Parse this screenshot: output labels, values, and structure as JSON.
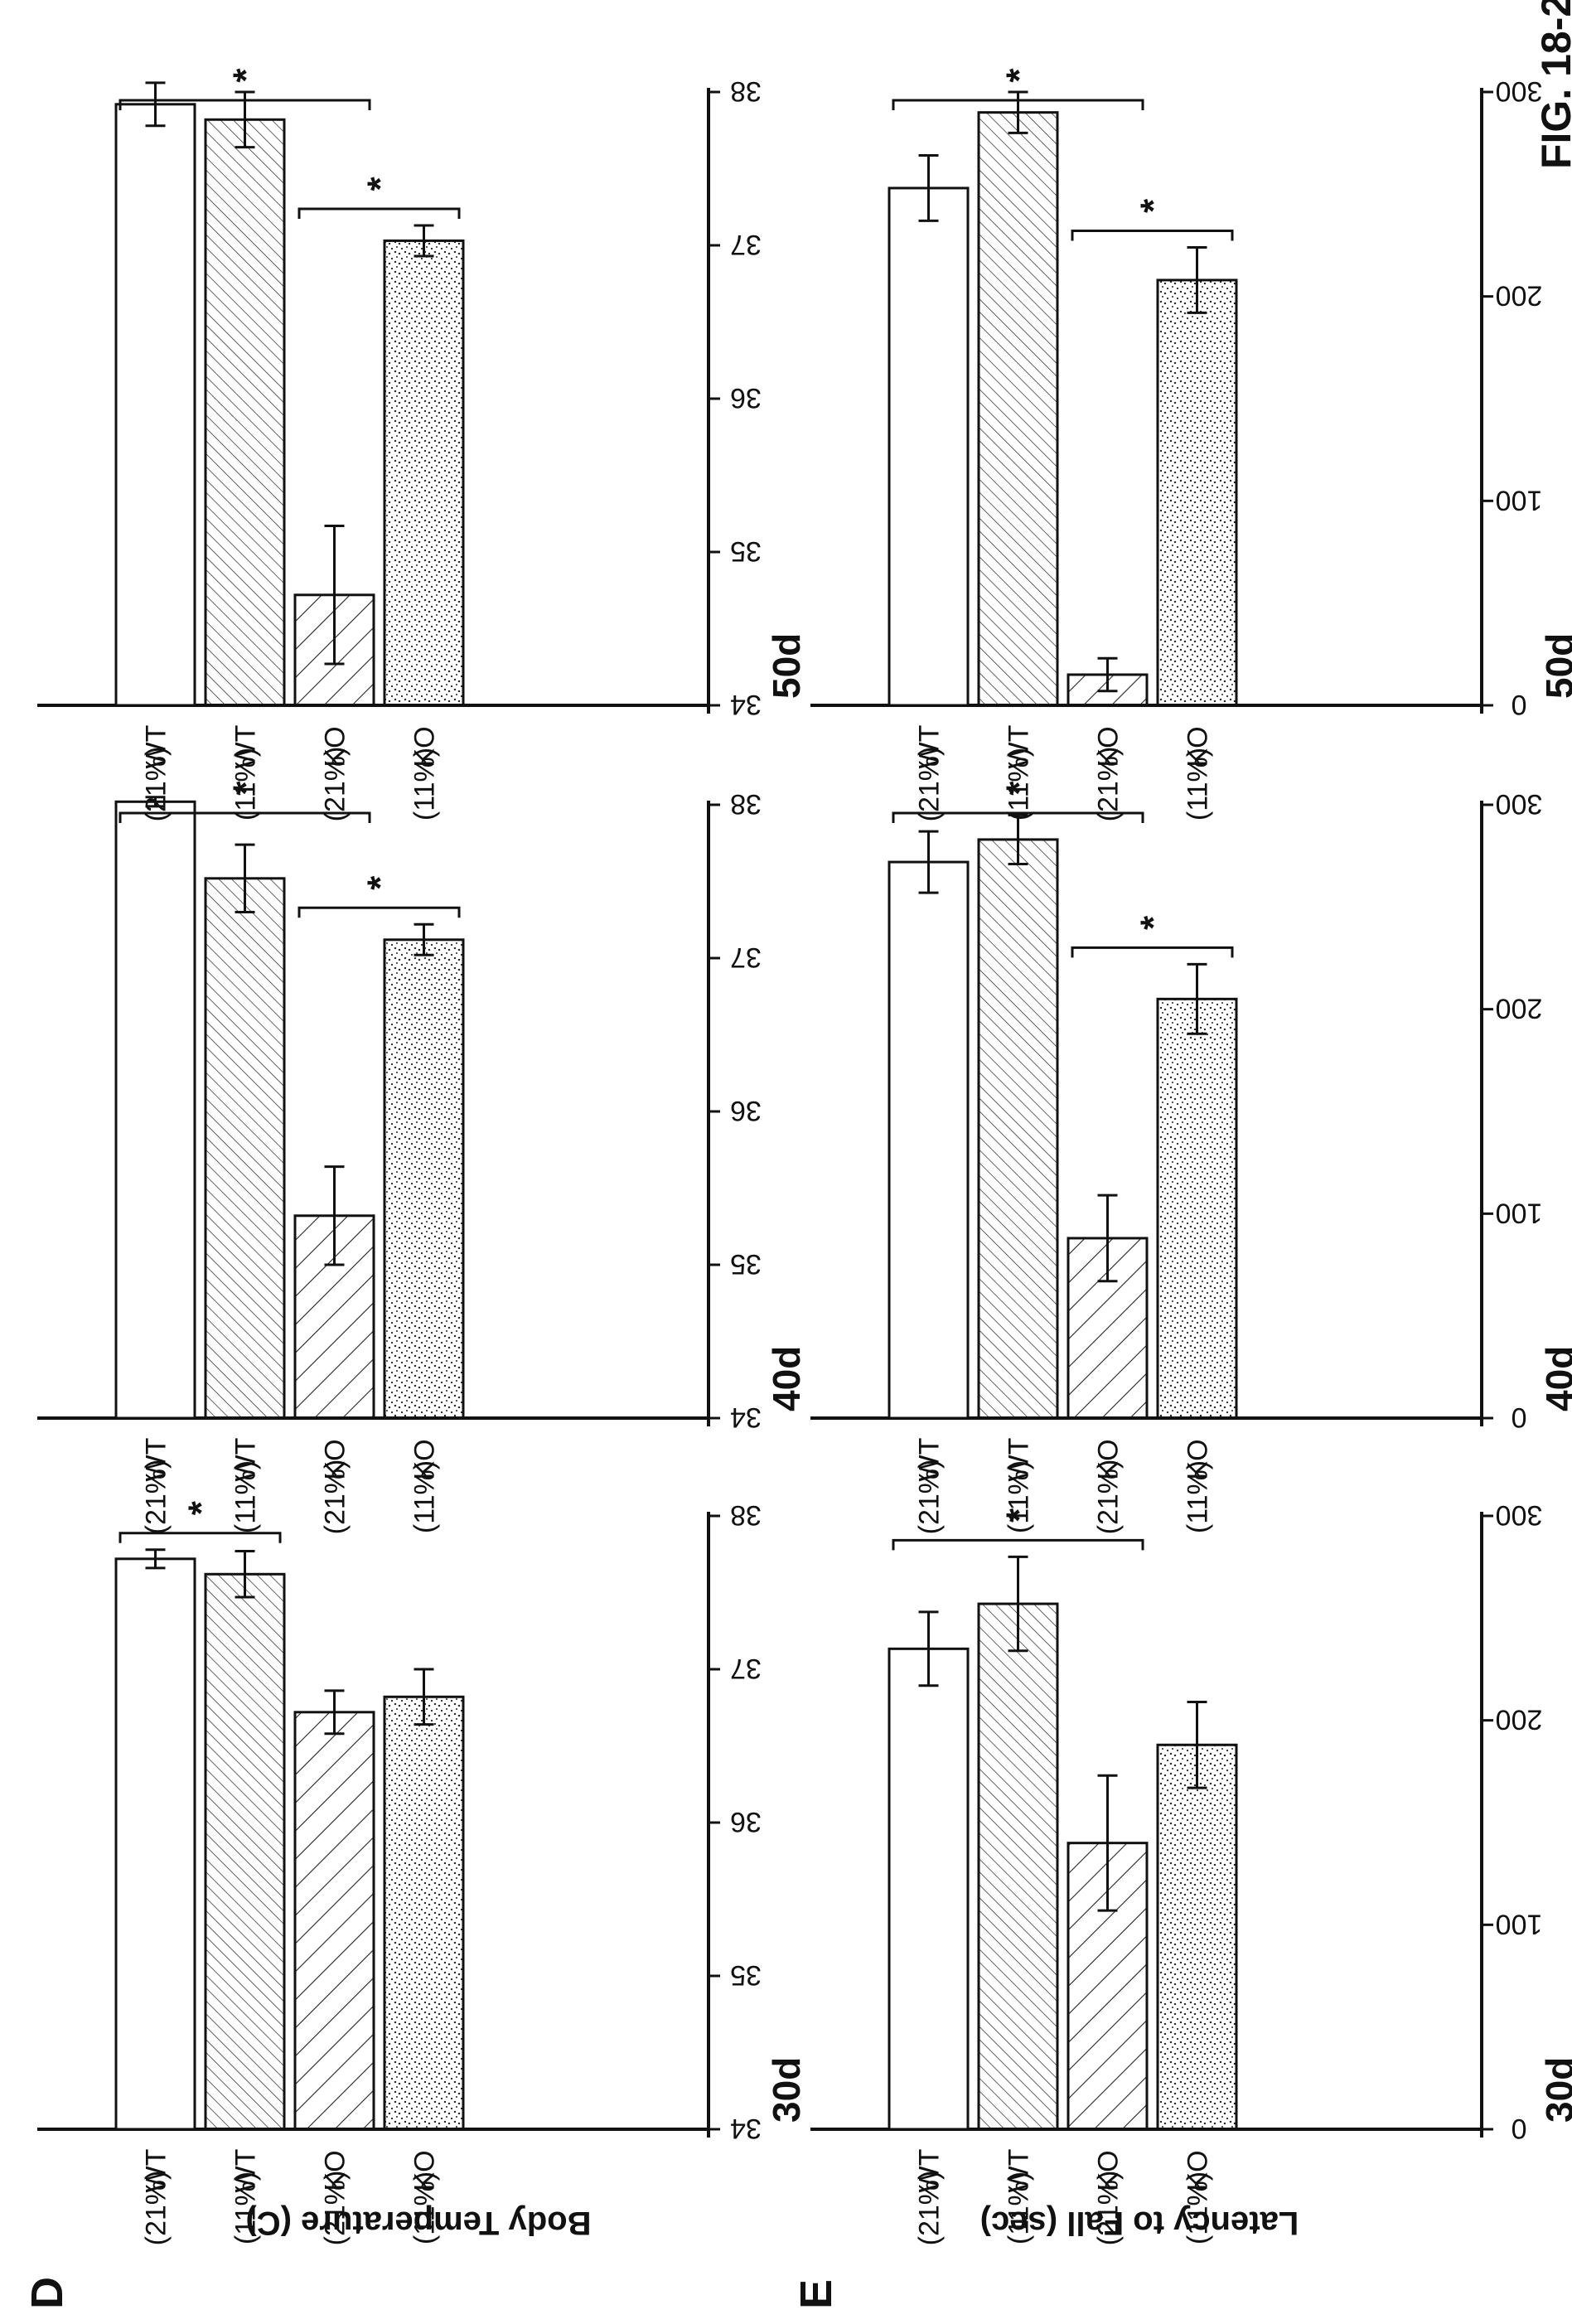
{
  "figure_label": "FIG. 18-2",
  "chart_data": [
    {
      "type": "bar",
      "panel": "D",
      "title": "30d",
      "ylabel": "Body Temperature (C)",
      "ylim": [
        34,
        38
      ],
      "yticks": [
        34,
        35,
        36,
        37,
        38
      ],
      "categories": [
        "WT (21%)",
        "WT (11%)",
        "KO (21%)",
        "KO (11%)"
      ],
      "values": [
        37.72,
        37.62,
        36.72,
        36.82
      ],
      "errors": [
        0.06,
        0.15,
        0.14,
        0.18
      ],
      "sig": [
        {
          "from": 0,
          "to": 1,
          "label": "*"
        }
      ]
    },
    {
      "type": "bar",
      "panel": "D",
      "title": "40d",
      "ylabel": "",
      "ylim": [
        34,
        38
      ],
      "yticks": [
        34,
        35,
        36,
        37,
        38
      ],
      "categories": [
        "WT (21%)",
        "WT (11%)",
        "KO (21%)",
        "KO (11%)"
      ],
      "values": [
        38.02,
        37.52,
        35.32,
        37.12
      ],
      "errors": [
        0.03,
        0.22,
        0.32,
        0.1
      ],
      "sig": [
        {
          "from": 0,
          "to": 2,
          "label": "*"
        },
        {
          "from": 2,
          "to": 3,
          "label": "*"
        }
      ]
    },
    {
      "type": "bar",
      "panel": "D",
      "title": "50d",
      "ylabel": "",
      "ylim": [
        34,
        38
      ],
      "yticks": [
        34,
        35,
        36,
        37,
        38
      ],
      "categories": [
        "WT (21%)",
        "WT (11%)",
        "KO (21%)",
        "KO (11%)"
      ],
      "values": [
        37.92,
        37.82,
        34.72,
        37.03
      ],
      "errors": [
        0.14,
        0.18,
        0.45,
        0.1
      ],
      "sig": [
        {
          "from": 0,
          "to": 2,
          "label": "*"
        },
        {
          "from": 2,
          "to": 3,
          "label": "*"
        }
      ]
    },
    {
      "type": "bar",
      "panel": "E",
      "title": "30d",
      "ylabel": "Latency to Fall (sec)",
      "ylim": [
        0,
        300
      ],
      "yticks": [
        0,
        100,
        200,
        300
      ],
      "categories": [
        "WT (21%)",
        "WT (11%)",
        "KO (21%)",
        "KO (11%)"
      ],
      "values": [
        235,
        257,
        140,
        188
      ],
      "errors": [
        18,
        23,
        33,
        21
      ],
      "sig": [
        {
          "from": 0,
          "to": 2,
          "label": "*"
        }
      ]
    },
    {
      "type": "bar",
      "panel": "E",
      "title": "40d",
      "ylabel": "",
      "ylim": [
        0,
        300
      ],
      "yticks": [
        0,
        100,
        200,
        300
      ],
      "categories": [
        "WT (21%)",
        "WT (11%)",
        "KO (21%)",
        "KO (11%)"
      ],
      "values": [
        272,
        283,
        88,
        205
      ],
      "errors": [
        15,
        12,
        21,
        17
      ],
      "sig": [
        {
          "from": 0,
          "to": 2,
          "label": "*"
        },
        {
          "from": 2,
          "to": 3,
          "label": "*"
        }
      ]
    },
    {
      "type": "bar",
      "panel": "E",
      "title": "50d",
      "ylabel": "",
      "ylim": [
        0,
        300
      ],
      "yticks": [
        0,
        100,
        200,
        300
      ],
      "categories": [
        "WT (21%)",
        "WT (11%)",
        "KO (21%)",
        "KO (11%)"
      ],
      "values": [
        253,
        290,
        15,
        208
      ],
      "errors": [
        16,
        10,
        8,
        16
      ],
      "sig": [
        {
          "from": 0,
          "to": 2,
          "label": "*"
        },
        {
          "from": 2,
          "to": 3,
          "label": "*"
        }
      ]
    }
  ]
}
